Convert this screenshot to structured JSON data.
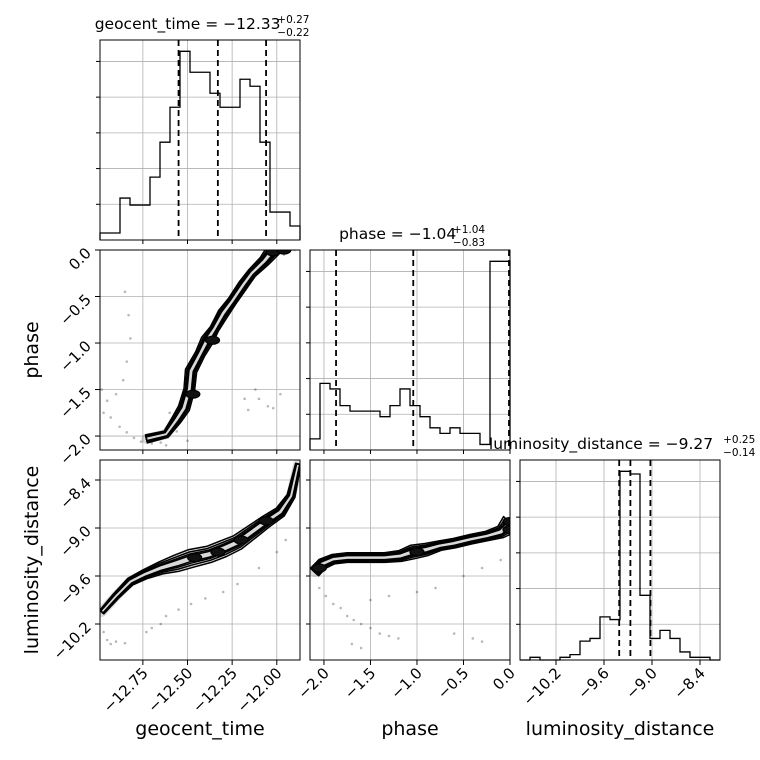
{
  "chart_data": {
    "type": "corner",
    "parameters": [
      "geocent_time",
      "phase",
      "luminosity_distance"
    ],
    "axis_labels": {
      "geocent_time": "geocent_time",
      "phase": "phase",
      "luminosity_distance": "luminosity_distance"
    },
    "titles": [
      {
        "param": "geocent_time",
        "main": "geocent_time = −12.33",
        "sup": "+0.27",
        "sub": "−0.22"
      },
      {
        "param": "phase",
        "main": "phase = −1.04",
        "sup": "+1.04",
        "sub": "−0.83"
      },
      {
        "param": "luminosity_distance",
        "main": "luminosity_distance = −9.27",
        "sup": "+0.25",
        "sub": "−0.14"
      }
    ],
    "ranges": {
      "geocent_time": [
        -12.99,
        -11.87
      ],
      "phase": [
        -2.15,
        0.0
      ],
      "luminosity_distance": [
        -10.65,
        -8.15
      ]
    },
    "ticks": {
      "geocent_time": {
        "values": [
          -12.75,
          -12.5,
          -12.25,
          -12.0
        ],
        "labels": [
          "−12.75",
          "−12.50",
          "−12.25",
          "−12.00"
        ]
      },
      "phase": {
        "values": [
          -2.0,
          -1.5,
          -1.0,
          -0.5,
          0.0
        ],
        "labels": [
          "−2.0",
          "−1.5",
          "−1.0",
          "−0.5",
          "0.0"
        ]
      },
      "luminosity_distance": {
        "values": [
          -10.2,
          -9.6,
          -9.0,
          -8.4
        ],
        "labels": [
          "−10.2",
          "−9.6",
          "−9.0",
          "−8.4"
        ]
      }
    },
    "histograms": {
      "geocent_time": {
        "edges": [
          -12.99,
          -12.934,
          -12.878,
          -12.822,
          -12.766,
          -12.71,
          -12.654,
          -12.598,
          -12.542,
          -12.486,
          -12.43,
          -12.374,
          -12.318,
          -12.262,
          -12.206,
          -12.15,
          -12.094,
          -12.038,
          -11.982,
          -11.926,
          -11.87
        ],
        "counts": [
          1,
          1,
          6,
          5,
          5,
          9,
          14,
          19,
          27,
          24,
          24,
          21,
          19,
          19,
          23,
          22,
          14,
          4,
          4,
          2
        ],
        "quantiles": [
          -12.55,
          -12.33,
          -12.06
        ]
      },
      "phase": {
        "edges": [
          -2.15,
          -2.0425,
          -1.935,
          -1.8275,
          -1.72,
          -1.6125,
          -1.505,
          -1.3975,
          -1.29,
          -1.1825,
          -1.075,
          -0.9675,
          -0.86,
          -0.7525,
          -0.645,
          -0.5375,
          -0.43,
          -0.3225,
          -0.215,
          -0.1075,
          0.0
        ],
        "counts": [
          2,
          12,
          11,
          8,
          7,
          7,
          7,
          6,
          8,
          11,
          8,
          6,
          4,
          3,
          4,
          3,
          3,
          1,
          34,
          34
        ],
        "quantiles": [
          -1.87,
          -1.04,
          0.0
        ]
      },
      "luminosity_distance": {
        "edges": [
          -10.65,
          -10.525,
          -10.4,
          -10.275,
          -10.15,
          -10.025,
          -9.9,
          -9.775,
          -9.65,
          -9.525,
          -9.4,
          -9.275,
          -9.15,
          -9.025,
          -8.9,
          -8.775,
          -8.65,
          -8.525,
          -8.4,
          -8.275,
          -8.15
        ],
        "counts": [
          0,
          1,
          0,
          0,
          1,
          2,
          7,
          8,
          16,
          15,
          70,
          69,
          24,
          8,
          11,
          8,
          3,
          1,
          1,
          0
        ],
        "quantiles": [
          -9.41,
          -9.27,
          -9.02
        ]
      }
    },
    "pairs": [
      {
        "x": "geocent_time",
        "y": "phase",
        "ridge": [
          [
            -12.73,
            -2.03
          ],
          [
            -12.62,
            -1.98
          ],
          [
            -12.56,
            -1.82
          ],
          [
            -12.52,
            -1.7
          ],
          [
            -12.49,
            -1.5
          ],
          [
            -12.48,
            -1.3
          ],
          [
            -12.43,
            -1.12
          ],
          [
            -12.39,
            -0.97
          ],
          [
            -12.35,
            -0.85
          ],
          [
            -12.3,
            -0.68
          ],
          [
            -12.25,
            -0.55
          ],
          [
            -12.19,
            -0.38
          ],
          [
            -12.14,
            -0.25
          ],
          [
            -12.07,
            -0.12
          ],
          [
            -12.02,
            0.0
          ]
        ],
        "widths": [
          0.035,
          0.03,
          0.045,
          0.055,
          0.05,
          0.055,
          0.045,
          0.06,
          0.04,
          0.05,
          0.04,
          0.045,
          0.04,
          0.05,
          0.07
        ],
        "scatter": [
          [
            -12.85,
            -0.45
          ],
          [
            -12.83,
            -0.7
          ],
          [
            -12.82,
            -0.95
          ],
          [
            -12.84,
            -1.2
          ],
          [
            -12.86,
            -1.4
          ],
          [
            -12.9,
            -1.55
          ],
          [
            -12.95,
            -1.62
          ],
          [
            -12.98,
            -1.5
          ],
          [
            -12.97,
            -1.75
          ],
          [
            -12.93,
            -1.8
          ],
          [
            -12.88,
            -1.9
          ],
          [
            -12.84,
            -1.96
          ],
          [
            -12.8,
            -2.02
          ],
          [
            -12.76,
            -2.06
          ],
          [
            -12.7,
            -2.08
          ],
          [
            -12.65,
            -2.07
          ],
          [
            -12.18,
            -1.6
          ],
          [
            -12.16,
            -1.72
          ],
          [
            -12.1,
            -1.6
          ],
          [
            -12.05,
            -1.68
          ],
          [
            -12.02,
            -1.7
          ],
          [
            -11.98,
            -1.55
          ],
          [
            -12.6,
            -1.75
          ],
          [
            -12.56,
            -1.95
          ],
          [
            -12.62,
            -2.1
          ],
          [
            -12.5,
            -2.05
          ],
          [
            -11.94,
            0.0
          ],
          [
            -11.9,
            0.0
          ],
          [
            -11.96,
            -0.05
          ],
          [
            -12.12,
            -1.5
          ]
        ],
        "core": [
          [
            -12.02,
            -0.02
          ],
          [
            -11.96,
            0.0
          ],
          [
            -12.47,
            -1.55
          ],
          [
            -12.36,
            -0.97
          ]
        ]
      },
      {
        "x": "geocent_time",
        "y": "luminosity_distance",
        "ridge": [
          [
            -12.98,
            -10.05
          ],
          [
            -12.9,
            -9.85
          ],
          [
            -12.82,
            -9.67
          ],
          [
            -12.74,
            -9.58
          ],
          [
            -12.65,
            -9.5
          ],
          [
            -12.56,
            -9.44
          ],
          [
            -12.48,
            -9.38
          ],
          [
            -12.38,
            -9.33
          ],
          [
            -12.3,
            -9.26
          ],
          [
            -12.22,
            -9.18
          ],
          [
            -12.14,
            -9.05
          ],
          [
            -12.06,
            -8.92
          ],
          [
            -11.98,
            -8.8
          ],
          [
            -11.92,
            -8.6
          ],
          [
            -11.88,
            -8.2
          ]
        ],
        "widths": [
          0.02,
          0.03,
          0.04,
          0.05,
          0.07,
          0.1,
          0.11,
          0.1,
          0.1,
          0.09,
          0.08,
          0.07,
          0.06,
          0.04,
          0.02
        ],
        "scatter": [
          [
            -12.97,
            -10.3
          ],
          [
            -12.95,
            -10.4
          ],
          [
            -12.9,
            -10.42
          ],
          [
            -12.85,
            -10.44
          ],
          [
            -12.93,
            -10.45
          ],
          [
            -12.62,
            -10.1
          ],
          [
            -12.55,
            -10.02
          ],
          [
            -12.48,
            -9.95
          ],
          [
            -12.4,
            -9.88
          ],
          [
            -12.3,
            -9.8
          ],
          [
            -12.22,
            -9.7
          ],
          [
            -12.1,
            -9.5
          ],
          [
            -12.0,
            -9.3
          ],
          [
            -11.95,
            -9.15
          ],
          [
            -12.7,
            -10.25
          ],
          [
            -12.73,
            -10.3
          ],
          [
            -12.65,
            -10.2
          ],
          [
            -11.92,
            -8.5
          ],
          [
            -11.9,
            -8.3
          ]
        ],
        "core": [
          [
            -12.46,
            -9.37
          ],
          [
            -12.33,
            -9.3
          ],
          [
            -12.2,
            -9.15
          ],
          [
            -12.06,
            -8.91
          ]
        ]
      },
      {
        "x": "phase",
        "y": "luminosity_distance",
        "ridge": [
          [
            -2.1,
            -9.55
          ],
          [
            -2.02,
            -9.45
          ],
          [
            -1.9,
            -9.39
          ],
          [
            -1.75,
            -9.37
          ],
          [
            -1.55,
            -9.37
          ],
          [
            -1.35,
            -9.37
          ],
          [
            -1.18,
            -9.35
          ],
          [
            -1.05,
            -9.3
          ],
          [
            -0.9,
            -9.27
          ],
          [
            -0.75,
            -9.22
          ],
          [
            -0.6,
            -9.19
          ],
          [
            -0.42,
            -9.14
          ],
          [
            -0.25,
            -9.1
          ],
          [
            -0.1,
            -9.05
          ],
          [
            0.0,
            -8.95
          ]
        ],
        "widths": [
          0.06,
          0.06,
          0.05,
          0.05,
          0.05,
          0.05,
          0.06,
          0.08,
          0.07,
          0.05,
          0.05,
          0.05,
          0.05,
          0.07,
          0.12
        ],
        "scatter": [
          [
            -2.05,
            -9.75
          ],
          [
            -1.98,
            -9.85
          ],
          [
            -1.9,
            -9.95
          ],
          [
            -1.82,
            -10.0
          ],
          [
            -1.75,
            -10.1
          ],
          [
            -1.68,
            -10.15
          ],
          [
            -1.6,
            -10.2
          ],
          [
            -1.5,
            -10.25
          ],
          [
            -1.4,
            -10.32
          ],
          [
            -1.3,
            -10.35
          ],
          [
            -1.2,
            -10.38
          ],
          [
            -0.6,
            -10.32
          ],
          [
            -0.4,
            -10.38
          ],
          [
            -0.3,
            -10.42
          ],
          [
            -1.0,
            -9.8
          ],
          [
            -0.8,
            -9.75
          ],
          [
            -0.5,
            -9.6
          ],
          [
            -0.3,
            -9.5
          ],
          [
            -0.1,
            -9.4
          ],
          [
            -1.5,
            -9.9
          ],
          [
            -1.3,
            -9.85
          ],
          [
            -1.7,
            -10.45
          ],
          [
            -1.6,
            -10.5
          ]
        ],
        "core": [
          [
            -2.05,
            -9.5
          ],
          [
            -1.0,
            -9.3
          ],
          [
            0.0,
            -9.02
          ],
          [
            0.0,
            -8.92
          ]
        ]
      }
    ],
    "style": {
      "hist_color": "#000000",
      "contour_colors": [
        "#d9d9d9",
        "#8c8c8c",
        "#3a3a3a",
        "#111111"
      ],
      "grid": true
    }
  }
}
